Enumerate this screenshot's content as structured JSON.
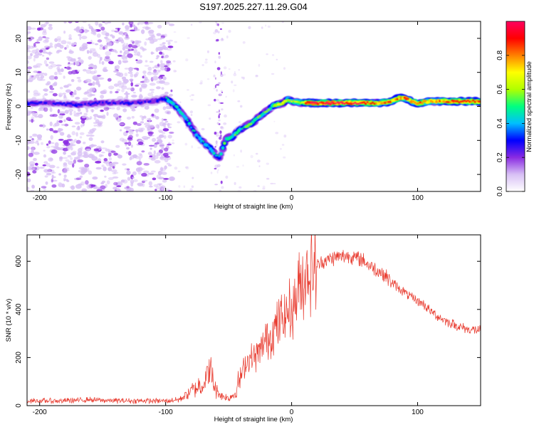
{
  "title": "S197.2025.227.11.29.G04",
  "colors": {
    "snr_line": "#e83a2e",
    "background": "#ffffff",
    "axis": "#000000",
    "blob_light": "#c9a8ef",
    "blob_dark": "#7a1fd6"
  },
  "chart_data": [
    {
      "type": "heatmap",
      "name": "spectrogram",
      "xlabel": "Height of straight line (km)",
      "ylabel": "Frequency (Hz)",
      "xlim": [
        -210,
        150
      ],
      "ylim": [
        -25,
        25
      ],
      "xticks": [
        -200,
        -100,
        0,
        100
      ],
      "yticks": [
        -20,
        -10,
        0,
        10,
        20
      ],
      "colorbar": {
        "label": "Normalized spectral amplitude",
        "range": [
          0,
          1
        ],
        "ticks": [
          0.0,
          0.2,
          0.4,
          0.6,
          0.8
        ],
        "colormap": [
          "#ffffff",
          "#d8c0f5",
          "#8a2be2",
          "#0000ff",
          "#00bfff",
          "#00ff80",
          "#b0ff00",
          "#ffff00",
          "#ff8000",
          "#ff0000",
          "#ff0060"
        ]
      },
      "ridge": [
        [
          -210,
          1
        ],
        [
          -190,
          1
        ],
        [
          -170,
          0.5
        ],
        [
          -150,
          1
        ],
        [
          -130,
          1
        ],
        [
          -110,
          1.5
        ],
        [
          -100,
          2.5
        ],
        [
          -92,
          0
        ],
        [
          -85,
          -3
        ],
        [
          -78,
          -7
        ],
        [
          -72,
          -10
        ],
        [
          -65,
          -12
        ],
        [
          -60,
          -14.5
        ],
        [
          -57,
          -15
        ],
        [
          -52,
          -9.5
        ],
        [
          -47,
          -9
        ],
        [
          -42,
          -7
        ],
        [
          -37,
          -6
        ],
        [
          -32,
          -5
        ],
        [
          -27,
          -3.5
        ],
        [
          -22,
          -2
        ],
        [
          -17,
          -0.5
        ],
        [
          -12,
          0.5
        ],
        [
          -7,
          1
        ],
        [
          -3,
          2
        ],
        [
          0,
          1.5
        ],
        [
          10,
          1
        ],
        [
          20,
          1
        ],
        [
          30,
          1
        ],
        [
          40,
          1
        ],
        [
          50,
          1
        ],
        [
          60,
          1
        ],
        [
          70,
          1
        ],
        [
          80,
          1.5
        ],
        [
          85,
          2.5
        ],
        [
          90,
          2.5
        ],
        [
          95,
          1.5
        ],
        [
          100,
          1
        ],
        [
          110,
          1.5
        ],
        [
          120,
          1.5
        ],
        [
          130,
          1.5
        ],
        [
          140,
          1.5
        ],
        [
          150,
          1.5
        ]
      ]
    },
    {
      "type": "line",
      "name": "snr",
      "xlabel": "Height of straight line (km)",
      "ylabel": "SNR (10 * v/v)",
      "xlim": [
        -210,
        150
      ],
      "ylim": [
        0,
        710
      ],
      "xticks": [
        -200,
        -100,
        0,
        100
      ],
      "yticks": [
        0,
        200,
        400,
        600
      ],
      "envelope": [
        [
          -210,
          20
        ],
        [
          -180,
          20
        ],
        [
          -160,
          25
        ],
        [
          -140,
          20
        ],
        [
          -120,
          20
        ],
        [
          -100,
          20
        ],
        [
          -90,
          25
        ],
        [
          -85,
          40
        ],
        [
          -80,
          60
        ],
        [
          -75,
          80
        ],
        [
          -70,
          90
        ],
        [
          -65,
          150
        ],
        [
          -60,
          60
        ],
        [
          -55,
          40
        ],
        [
          -50,
          30
        ],
        [
          -45,
          50
        ],
        [
          -40,
          130
        ],
        [
          -35,
          190
        ],
        [
          -30,
          200
        ],
        [
          -25,
          220
        ],
        [
          -20,
          280
        ],
        [
          -15,
          300
        ],
        [
          -10,
          340
        ],
        [
          -5,
          390
        ],
        [
          0,
          400
        ],
        [
          5,
          470
        ],
        [
          10,
          540
        ],
        [
          15,
          560
        ],
        [
          20,
          580
        ],
        [
          25,
          600
        ],
        [
          30,
          610
        ],
        [
          35,
          615
        ],
        [
          40,
          620
        ],
        [
          45,
          625
        ],
        [
          50,
          615
        ],
        [
          55,
          610
        ],
        [
          60,
          590
        ],
        [
          65,
          575
        ],
        [
          70,
          555
        ],
        [
          75,
          535
        ],
        [
          80,
          510
        ],
        [
          85,
          490
        ],
        [
          90,
          470
        ],
        [
          95,
          450
        ],
        [
          100,
          435
        ],
        [
          105,
          420
        ],
        [
          110,
          395
        ],
        [
          115,
          375
        ],
        [
          120,
          360
        ],
        [
          125,
          345
        ],
        [
          130,
          335
        ],
        [
          135,
          325
        ],
        [
          140,
          318
        ],
        [
          145,
          315
        ],
        [
          150,
          312
        ]
      ]
    }
  ]
}
